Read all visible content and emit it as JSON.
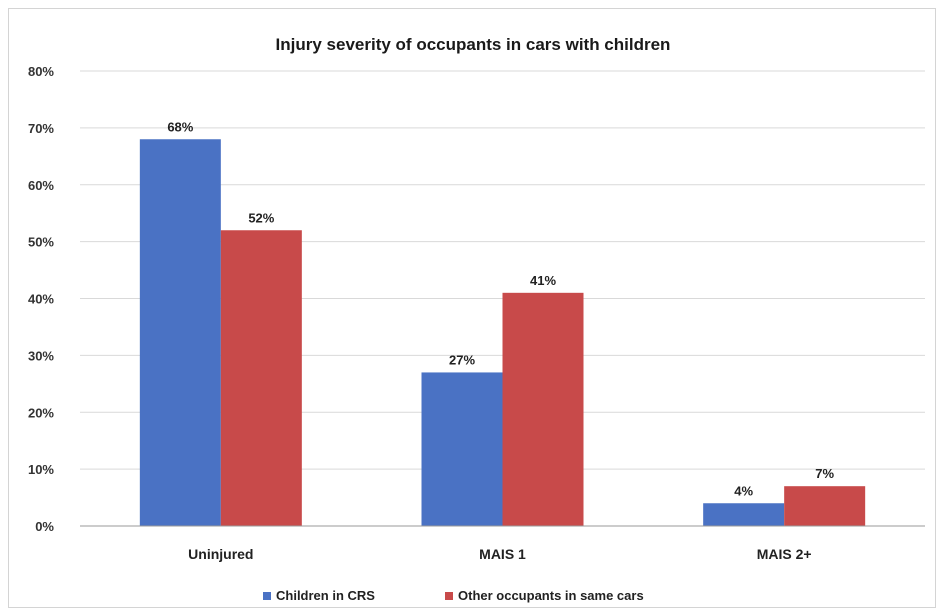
{
  "chart_data": {
    "type": "bar",
    "title": "Injury severity of occupants in cars with children",
    "categories": [
      "Uninjured",
      "MAIS 1",
      "MAIS 2+"
    ],
    "series": [
      {
        "name": "Children in CRS",
        "values": [
          68,
          27,
          4
        ],
        "labels": [
          "68%",
          "27%",
          "4%"
        ],
        "color": "#4a72c4"
      },
      {
        "name": "Other occupants in same cars",
        "values": [
          52,
          41,
          7
        ],
        "labels": [
          "52%",
          "41%",
          "7%"
        ],
        "color": "#c84a4a"
      }
    ],
    "ylim": [
      0,
      80
    ],
    "yticks": [
      "0%",
      "10%",
      "20%",
      "30%",
      "40%",
      "50%",
      "60%",
      "70%",
      "80%"
    ],
    "grid": true,
    "legend": "bottom"
  }
}
